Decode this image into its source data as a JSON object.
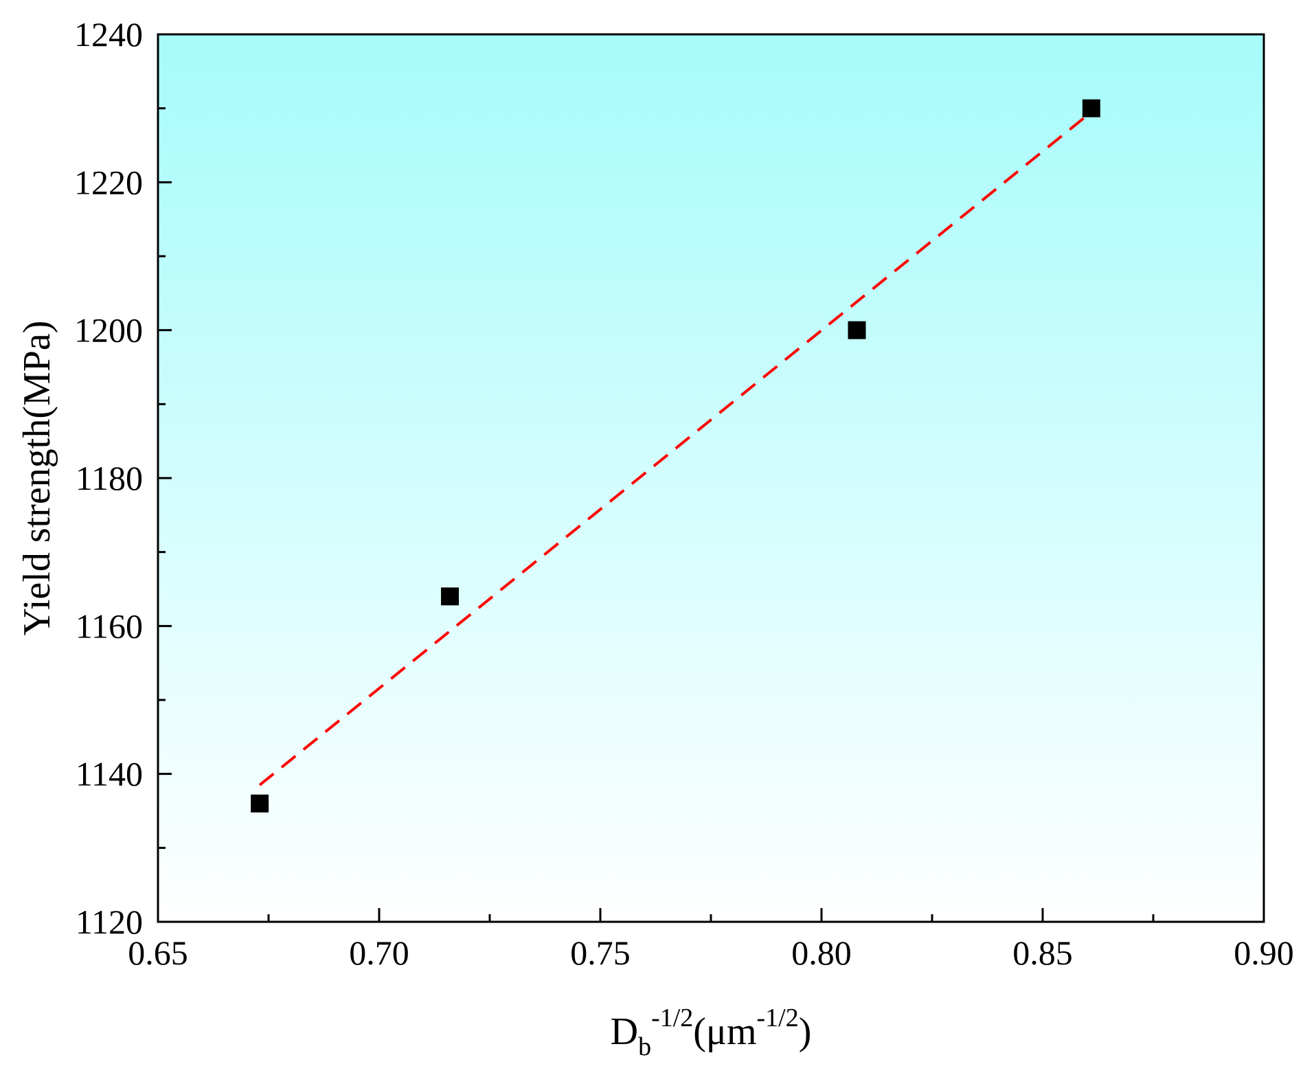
{
  "chart_data": {
    "type": "scatter",
    "xlim": [
      0.65,
      0.9
    ],
    "ylim": [
      1120,
      1240
    ],
    "x_ticks": [
      "0.65",
      "0.70",
      "0.75",
      "0.80",
      "0.85",
      "0.90"
    ],
    "y_ticks": [
      "1120",
      "1140",
      "1160",
      "1180",
      "1200",
      "1220",
      "1240"
    ],
    "ylabel": "Yield strength(MPa)",
    "xlabel": {
      "base": "D",
      "sub": "b",
      "sup": "-1/2",
      "unit_open": "(μm",
      "unit_sup": "-1/2",
      "unit_close": ")"
    },
    "series": [
      {
        "marker": "square",
        "color": "#000000",
        "x": [
          0.673,
          0.716,
          0.808,
          0.861
        ],
        "y": [
          1136,
          1164,
          1200,
          1230
        ]
      }
    ],
    "fit_line": {
      "style": "dashed",
      "color": "#ff0000",
      "x": [
        0.673,
        0.861
      ],
      "y": [
        1138.5,
        1229.5
      ]
    },
    "background_gradient": [
      "#a6fbfb",
      "#ffffff"
    ],
    "grid": false,
    "legend": "none"
  }
}
